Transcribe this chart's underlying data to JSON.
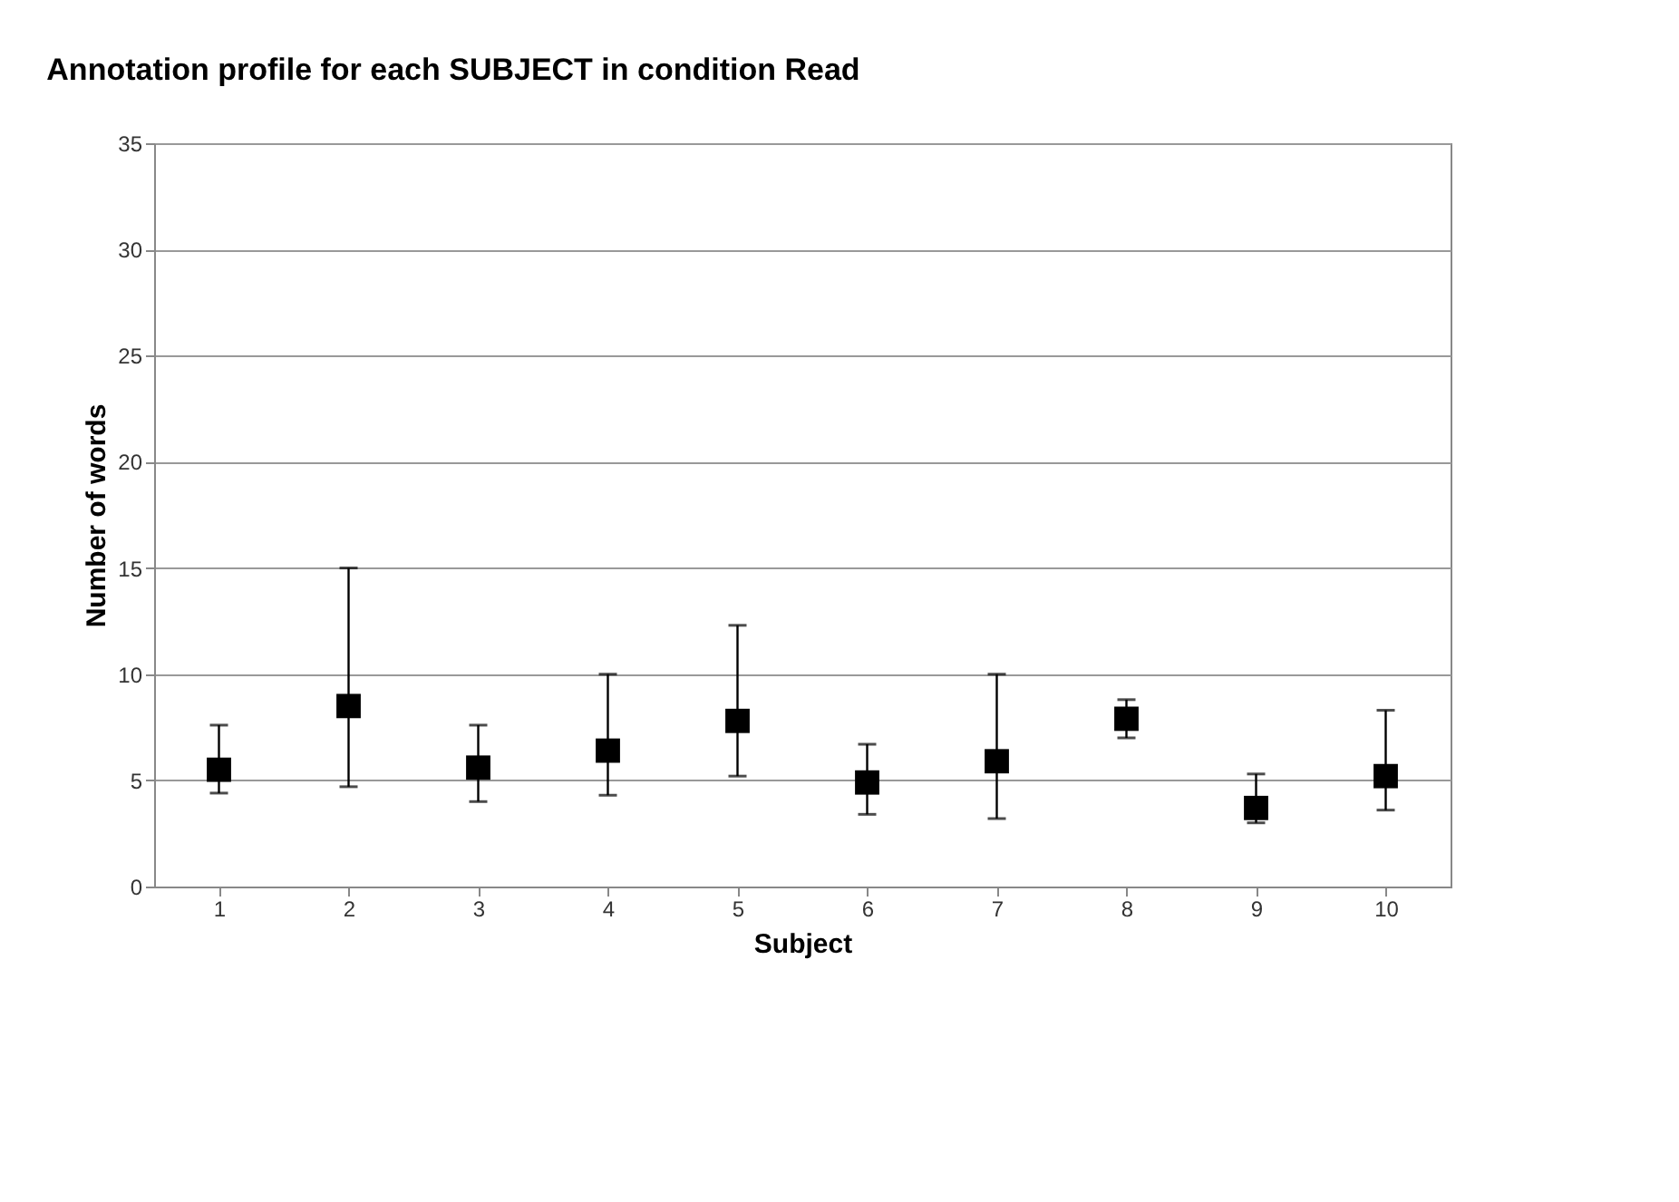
{
  "chart_data": {
    "type": "scatter",
    "title": "Annotation profile for each SUBJECT in condition Read",
    "xlabel": "Subject",
    "ylabel": "Number of words",
    "categories": [
      "1",
      "2",
      "3",
      "4",
      "5",
      "6",
      "7",
      "8",
      "9",
      "10"
    ],
    "series": [
      {
        "color": "#000000",
        "values": [
          5.5,
          8.5,
          5.6,
          6.4,
          7.8,
          4.9,
          5.9,
          7.9,
          3.7,
          5.2
        ],
        "errors": [
          [
            4.4,
            7.6
          ],
          [
            4.7,
            15
          ],
          [
            4.0,
            7.6
          ],
          [
            4.3,
            10
          ],
          [
            5.2,
            12.3
          ],
          [
            3.4,
            6.7
          ],
          [
            3.2,
            10
          ],
          [
            7.0,
            8.8
          ],
          [
            3.0,
            5.3
          ],
          [
            3.6,
            8.3
          ]
        ]
      }
    ],
    "ylim": [
      0,
      35
    ],
    "yticks": [
      0,
      5,
      10,
      15,
      20,
      25,
      30,
      35
    ],
    "grid": "y",
    "marker": "square"
  }
}
